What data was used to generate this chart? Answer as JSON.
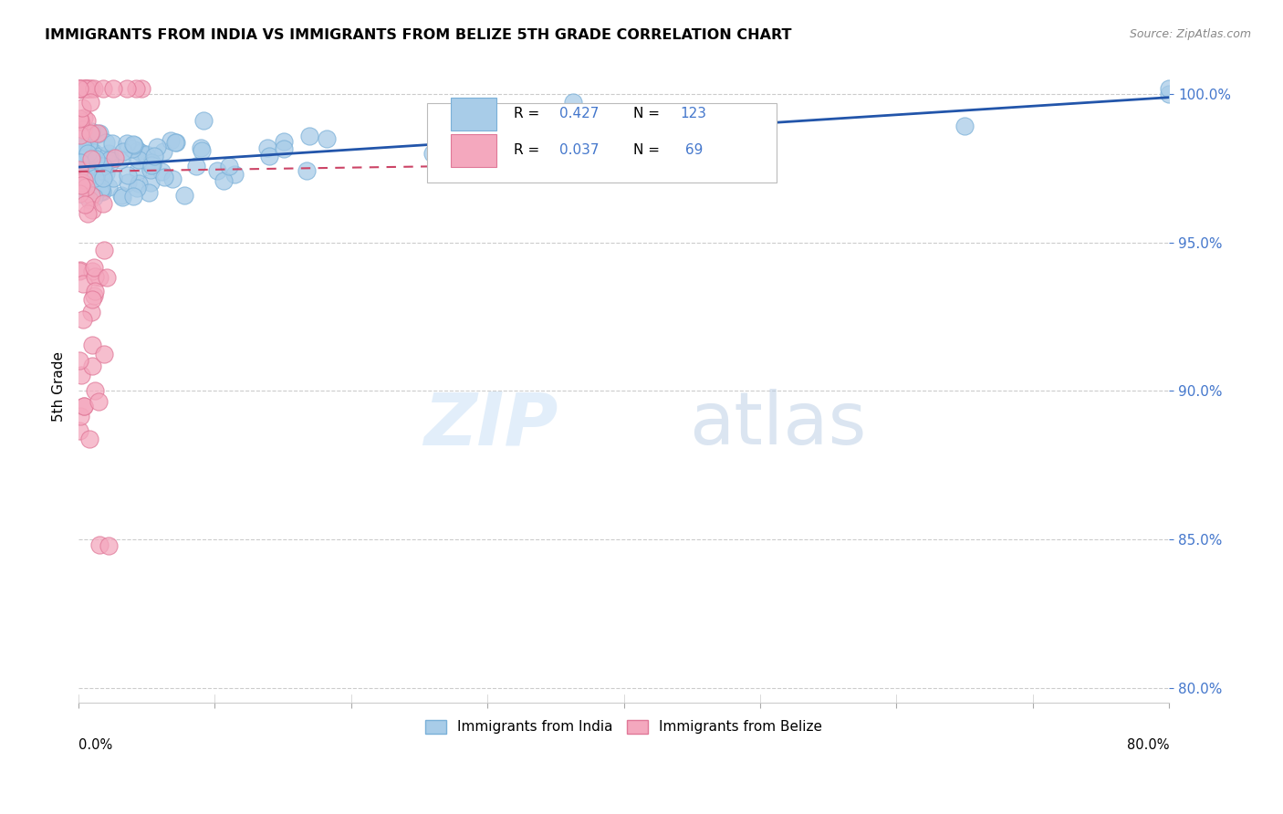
{
  "title": "IMMIGRANTS FROM INDIA VS IMMIGRANTS FROM BELIZE 5TH GRADE CORRELATION CHART",
  "source": "Source: ZipAtlas.com",
  "ylabel": "5th Grade",
  "xmin": 0.0,
  "xmax": 0.8,
  "ymin": 0.795,
  "ymax": 1.008,
  "india_color": "#a8cce8",
  "india_edge": "#7ab0d8",
  "belize_color": "#f4a8be",
  "belize_edge": "#e07898",
  "trendline_india_color": "#2255aa",
  "trendline_belize_color": "#cc4466",
  "R_india": 0.427,
  "N_india": 123,
  "R_belize": 0.037,
  "N_belize": 69,
  "legend_india": "Immigrants from India",
  "legend_belize": "Immigrants from Belize",
  "watermark_zip": "ZIP",
  "watermark_atlas": "atlas",
  "grid_color": "#cccccc",
  "background_color": "#ffffff",
  "title_fontsize": 11.5,
  "axis_label_color": "#4477cc",
  "ytick_positions": [
    0.8,
    0.85,
    0.9,
    0.95,
    1.0
  ],
  "ytick_labels": [
    "80.0%",
    "85.0%",
    "90.0%",
    "95.0%",
    "100.0%"
  ],
  "india_trend_x": [
    0.0,
    0.8
  ],
  "india_trend_y": [
    0.9755,
    0.999
  ],
  "belize_trend_x": [
    0.0,
    0.45
  ],
  "belize_trend_y": [
    0.974,
    0.977
  ]
}
